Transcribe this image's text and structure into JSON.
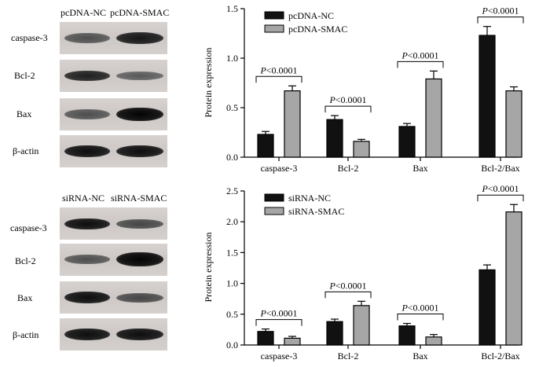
{
  "blots": [
    {
      "columns": [
        "pcDNA-NC",
        "pcDNA-SMAC"
      ],
      "rows": [
        {
          "label": "caspase-3",
          "left": 0.55,
          "right": 0.85
        },
        {
          "label": "Bcl-2",
          "left": 0.8,
          "right": 0.5
        },
        {
          "label": "Bax",
          "left": 0.55,
          "right": 0.95
        },
        {
          "label": "β-actin",
          "left": 0.9,
          "right": 0.9
        }
      ]
    },
    {
      "columns": [
        "siRNA-NC",
        "siRNA-SMAC"
      ],
      "rows": [
        {
          "label": "caspase-3",
          "left": 0.9,
          "right": 0.6
        },
        {
          "label": "Bcl-2",
          "left": 0.55,
          "right": 0.95
        },
        {
          "label": "Bax",
          "left": 0.9,
          "right": 0.6
        },
        {
          "label": "β-actin",
          "left": 0.9,
          "right": 0.9
        }
      ]
    }
  ],
  "chart_data": [
    {
      "type": "bar",
      "ylabel": "Protein expression",
      "ylim": [
        0,
        1.5
      ],
      "yticks": [
        "0.0",
        "0.5",
        "1.0",
        "1.5"
      ],
      "categories": [
        "caspase-3",
        "Bcl-2",
        "Bax",
        "Bcl-2/Bax"
      ],
      "series": [
        {
          "name": "pcDNA-NC",
          "color": "#111111",
          "values": [
            0.23,
            0.38,
            0.31,
            1.23
          ],
          "errors": [
            0.03,
            0.04,
            0.03,
            0.09
          ]
        },
        {
          "name": "pcDNA-SMAC",
          "color": "#a6a6a6",
          "values": [
            0.67,
            0.16,
            0.79,
            0.67
          ],
          "errors": [
            0.05,
            0.02,
            0.08,
            0.04
          ]
        }
      ],
      "annotations": [
        "P<0.0001",
        "P<0.0001",
        "P<0.0001",
        "P<0.0001"
      ],
      "legend": "top-left",
      "grid": false
    },
    {
      "type": "bar",
      "ylabel": "Protein expression",
      "ylim": [
        0,
        2.5
      ],
      "yticks": [
        "0.0",
        "0.5",
        "1.0",
        "1.5",
        "2.0",
        "2.5"
      ],
      "categories": [
        "caspase-3",
        "Bcl-2",
        "Bax",
        "Bcl-2/Bax"
      ],
      "series": [
        {
          "name": "siRNA-NC",
          "color": "#111111",
          "values": [
            0.22,
            0.38,
            0.31,
            1.22
          ],
          "errors": [
            0.04,
            0.04,
            0.04,
            0.08
          ]
        },
        {
          "name": "siRNA-SMAC",
          "color": "#a6a6a6",
          "values": [
            0.11,
            0.64,
            0.13,
            2.16
          ],
          "errors": [
            0.03,
            0.07,
            0.04,
            0.12
          ]
        }
      ],
      "annotations": [
        "P<0.0001",
        "P<0.0001",
        "P<0.0001",
        "P<0.0001"
      ],
      "legend": "top-left",
      "grid": false
    }
  ]
}
